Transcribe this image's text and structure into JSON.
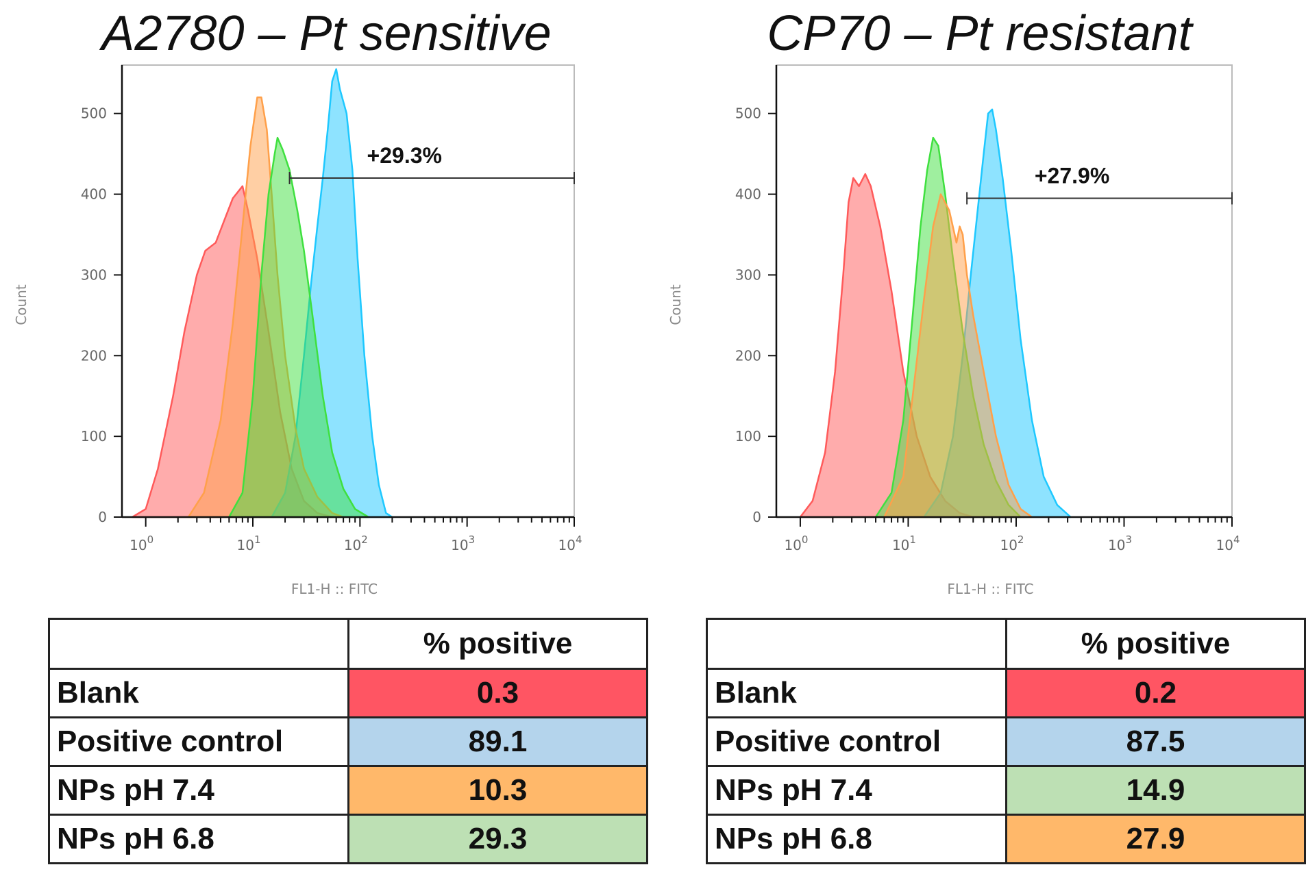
{
  "panels": [
    {
      "title": "A2780 – Pt sensitive",
      "chart_data": {
        "type": "area",
        "xscale": "log",
        "xlim": [
          0.6,
          10000
        ],
        "ylim": [
          0,
          560
        ],
        "xlabel": "FL1-H :: FITC",
        "ylabel": "Count",
        "x_ticks": [
          {
            "value": 1,
            "base": "10",
            "exp": "0"
          },
          {
            "value": 10,
            "base": "10",
            "exp": "1"
          },
          {
            "value": 100,
            "base": "10",
            "exp": "2"
          },
          {
            "value": 1000,
            "base": "10",
            "exp": "3"
          },
          {
            "value": 10000,
            "base": "10",
            "exp": "4"
          }
        ],
        "y_ticks": [
          0,
          100,
          200,
          300,
          400,
          500
        ],
        "gate": {
          "label": "+29.3%",
          "x_start": 22,
          "x_end": 10000,
          "y": 420
        },
        "series": [
          {
            "name": "Blank",
            "color": "#ff5a5a",
            "points": [
              [
                0.75,
                0
              ],
              [
                1.0,
                10
              ],
              [
                1.3,
                60
              ],
              [
                1.8,
                150
              ],
              [
                2.3,
                230
              ],
              [
                3.0,
                300
              ],
              [
                3.6,
                330
              ],
              [
                4.5,
                340
              ],
              [
                5.5,
                370
              ],
              [
                6.5,
                395
              ],
              [
                8.0,
                410
              ],
              [
                9.0,
                380
              ],
              [
                11,
                320
              ],
              [
                14,
                230
              ],
              [
                18,
                130
              ],
              [
                23,
                60
              ],
              [
                30,
                20
              ],
              [
                40,
                5
              ],
              [
                55,
                0
              ]
            ]
          },
          {
            "name": "Positive control",
            "color": "#1ec8ff",
            "points": [
              [
                15,
                0
              ],
              [
                20,
                30
              ],
              [
                25,
                100
              ],
              [
                30,
                200
              ],
              [
                35,
                290
              ],
              [
                40,
                360
              ],
              [
                45,
                420
              ],
              [
                50,
                480
              ],
              [
                55,
                540
              ],
              [
                60,
                555
              ],
              [
                65,
                530
              ],
              [
                75,
                500
              ],
              [
                85,
                430
              ],
              [
                95,
                320
              ],
              [
                110,
                200
              ],
              [
                130,
                100
              ],
              [
                150,
                40
              ],
              [
                175,
                5
              ],
              [
                200,
                0
              ]
            ]
          },
          {
            "name": "NPs pH 7.4",
            "color": "#ffa04a",
            "points": [
              [
                2.5,
                0
              ],
              [
                3.5,
                30
              ],
              [
                5,
                120
              ],
              [
                6.5,
                240
              ],
              [
                8,
                360
              ],
              [
                9.5,
                460
              ],
              [
                11,
                520
              ],
              [
                12,
                520
              ],
              [
                13.5,
                480
              ],
              [
                15,
                400
              ],
              [
                17,
                300
              ],
              [
                20,
                200
              ],
              [
                25,
                110
              ],
              [
                30,
                60
              ],
              [
                40,
                25
              ],
              [
                55,
                5
              ],
              [
                70,
                0
              ]
            ]
          },
          {
            "name": "NPs pH 6.8",
            "color": "#3fe03f",
            "points": [
              [
                6,
                0
              ],
              [
                8,
                30
              ],
              [
                10,
                150
              ],
              [
                12,
                300
              ],
              [
                14,
                400
              ],
              [
                16,
                450
              ],
              [
                17,
                470
              ],
              [
                19,
                455
              ],
              [
                22,
                430
              ],
              [
                26,
                380
              ],
              [
                30,
                330
              ],
              [
                36,
                250
              ],
              [
                45,
                150
              ],
              [
                55,
                80
              ],
              [
                70,
                35
              ],
              [
                90,
                10
              ],
              [
                120,
                0
              ]
            ]
          }
        ]
      },
      "table": {
        "header": "% positive",
        "rows": [
          {
            "label": "Blank",
            "value": "0.3",
            "color": "#ff5563"
          },
          {
            "label": "Positive control",
            "value": "89.1",
            "color": "#b4d4ec"
          },
          {
            "label": "NPs pH 7.4",
            "value": "10.3",
            "color": "#ffb86a"
          },
          {
            "label": "NPs pH 6.8",
            "value": "29.3",
            "color": "#bde0b4"
          }
        ]
      }
    },
    {
      "title": "CP70 – Pt resistant",
      "chart_data": {
        "type": "area",
        "xscale": "log",
        "xlim": [
          0.6,
          10000
        ],
        "ylim": [
          0,
          560
        ],
        "xlabel": "FL1-H :: FITC",
        "ylabel": "Count",
        "x_ticks": [
          {
            "value": 1,
            "base": "10",
            "exp": "0"
          },
          {
            "value": 10,
            "base": "10",
            "exp": "1"
          },
          {
            "value": 100,
            "base": "10",
            "exp": "2"
          },
          {
            "value": 1000,
            "base": "10",
            "exp": "3"
          },
          {
            "value": 10000,
            "base": "10",
            "exp": "4"
          }
        ],
        "y_ticks": [
          0,
          100,
          200,
          300,
          400,
          500
        ],
        "gate": {
          "label": "+27.9%",
          "x_start": 35,
          "x_end": 10000,
          "y": 395
        },
        "series": [
          {
            "name": "Blank",
            "color": "#ff5a5a",
            "points": [
              [
                1.0,
                0
              ],
              [
                1.3,
                20
              ],
              [
                1.7,
                80
              ],
              [
                2.1,
                180
              ],
              [
                2.5,
                300
              ],
              [
                2.8,
                390
              ],
              [
                3.1,
                420
              ],
              [
                3.5,
                410
              ],
              [
                4.0,
                425
              ],
              [
                4.5,
                410
              ],
              [
                5.5,
                360
              ],
              [
                7,
                280
              ],
              [
                9,
                180
              ],
              [
                12,
                100
              ],
              [
                16,
                50
              ],
              [
                22,
                20
              ],
              [
                30,
                5
              ],
              [
                40,
                0
              ]
            ]
          },
          {
            "name": "Positive control",
            "color": "#1ec8ff",
            "points": [
              [
                14,
                0
              ],
              [
                20,
                30
              ],
              [
                26,
                100
              ],
              [
                32,
                200
              ],
              [
                38,
                300
              ],
              [
                44,
                380
              ],
              [
                50,
                450
              ],
              [
                55,
                500
              ],
              [
                60,
                505
              ],
              [
                65,
                480
              ],
              [
                75,
                420
              ],
              [
                90,
                330
              ],
              [
                110,
                220
              ],
              [
                140,
                120
              ],
              [
                180,
                50
              ],
              [
                240,
                15
              ],
              [
                320,
                0
              ]
            ]
          },
          {
            "name": "NPs pH 7.4",
            "color": "#3fe03f",
            "points": [
              [
                5,
                0
              ],
              [
                7,
                30
              ],
              [
                9,
                120
              ],
              [
                11,
                250
              ],
              [
                13,
                360
              ],
              [
                15,
                430
              ],
              [
                17,
                470
              ],
              [
                19,
                460
              ],
              [
                22,
                400
              ],
              [
                26,
                320
              ],
              [
                32,
                230
              ],
              [
                40,
                150
              ],
              [
                50,
                90
              ],
              [
                65,
                45
              ],
              [
                85,
                15
              ],
              [
                110,
                0
              ]
            ]
          },
          {
            "name": "NPs pH 6.8",
            "color": "#ffa04a",
            "points": [
              [
                6,
                0
              ],
              [
                9,
                50
              ],
              [
                11,
                150
              ],
              [
                14,
                270
              ],
              [
                17,
                360
              ],
              [
                20,
                400
              ],
              [
                24,
                380
              ],
              [
                28,
                340
              ],
              [
                30,
                360
              ],
              [
                32,
                350
              ],
              [
                35,
                300
              ],
              [
                40,
                250
              ],
              [
                50,
                180
              ],
              [
                65,
                100
              ],
              [
                85,
                40
              ],
              [
                110,
                10
              ],
              [
                140,
                0
              ]
            ]
          }
        ]
      },
      "table": {
        "header": "% positive",
        "rows": [
          {
            "label": "Blank",
            "value": "0.2",
            "color": "#ff5563"
          },
          {
            "label": "Positive control",
            "value": "87.5",
            "color": "#b4d4ec"
          },
          {
            "label": "NPs pH 7.4",
            "value": "14.9",
            "color": "#bde0b4"
          },
          {
            "label": "NPs pH 6.8",
            "value": "27.9",
            "color": "#ffb86a"
          }
        ]
      }
    }
  ]
}
